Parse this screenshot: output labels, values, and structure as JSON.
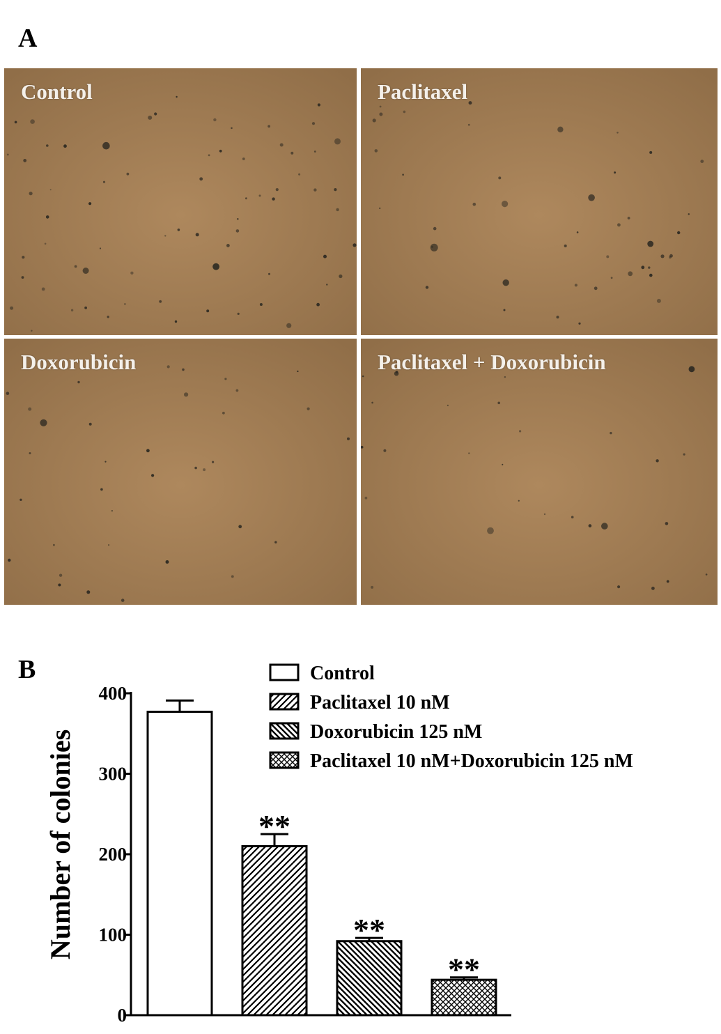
{
  "panel_a": {
    "letter": "A",
    "images": [
      {
        "label": "Control",
        "image": "micrograph of stained colonies on brown agar"
      },
      {
        "label": "Paclitaxel",
        "image": "micrograph of stained colonies on brown agar"
      },
      {
        "label": "Doxorubicin",
        "image": "micrograph of stained colonies on brown agar"
      },
      {
        "label": "Paclitaxel + Doxorubicin",
        "image": "micrograph of stained colonies on brown agar"
      }
    ],
    "background_color": "#a27c52"
  },
  "panel_b": {
    "letter": "B"
  },
  "chart_data": {
    "type": "bar",
    "title": "",
    "xlabel": "",
    "ylabel": "Number of colonies",
    "ylim": [
      0,
      400
    ],
    "yticks": [
      0,
      100,
      200,
      300,
      400
    ],
    "grid": false,
    "legend_position": "top-right",
    "categories": [
      "Control",
      "Paclitaxel 10 nM",
      "Doxorubicin 125 nM",
      "Paclitaxel 10 nM+Doxorubicin 125 nM"
    ],
    "values": [
      377,
      210,
      92,
      44
    ],
    "errors": [
      14,
      15,
      4,
      3
    ],
    "annotations": [
      "",
      "**",
      "**",
      "**"
    ],
    "patterns": [
      "none",
      "diagonal-up",
      "diagonal-down",
      "crosshatch"
    ]
  }
}
